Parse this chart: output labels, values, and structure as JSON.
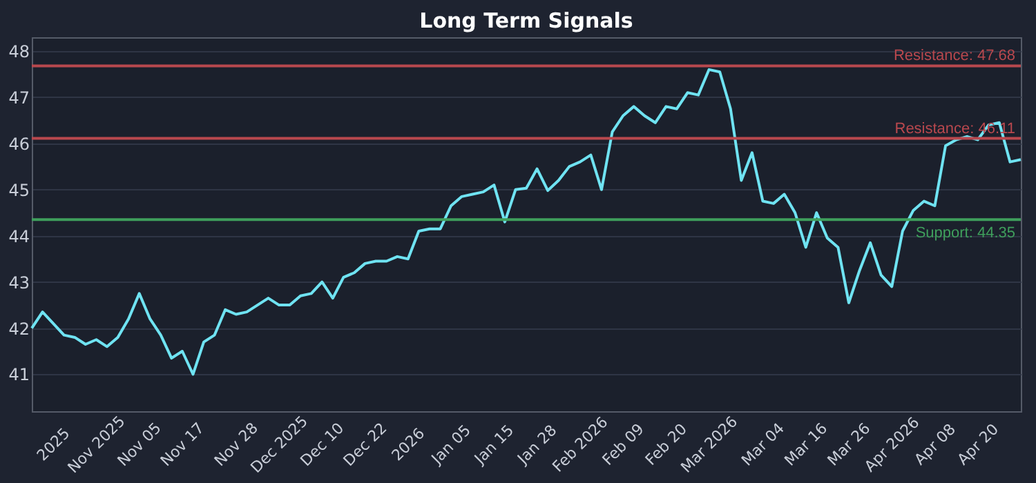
{
  "chart_data": {
    "type": "line",
    "title": "Long Term Signals",
    "categories": [
      null,
      null,
      "2025",
      null,
      null,
      null,
      "Nov 2025",
      null,
      null,
      null,
      "Nov 05",
      null,
      null,
      null,
      "Nov 17",
      null,
      null,
      null,
      null,
      "Nov 28",
      null,
      null,
      null,
      "Dec 2025",
      null,
      null,
      null,
      "Dec 10",
      null,
      null,
      null,
      "Dec 22",
      null,
      null,
      null,
      "2026",
      null,
      null,
      null,
      "Jan 05",
      null,
      null,
      null,
      "Jan 15",
      null,
      null,
      null,
      "Jan 28",
      null,
      null,
      null,
      "Feb 2026",
      null,
      null,
      null,
      "Feb 09",
      null,
      null,
      null,
      "Feb 20",
      null,
      null,
      null,
      "Mar 2026",
      null,
      null,
      null,
      null,
      "Mar 04",
      null,
      null,
      null,
      "Mar 16",
      null,
      null,
      null,
      "Mar 26",
      null,
      null,
      null,
      "Apr 2026",
      null,
      null,
      null,
      "Apr 08",
      null,
      null,
      null,
      "Apr 20",
      null,
      null,
      null,
      null
    ],
    "series": [
      {
        "color": "#6fe3f2",
        "values": [
          42.0,
          42.35,
          42.1,
          41.85,
          41.8,
          41.65,
          41.75,
          41.6,
          41.8,
          42.2,
          42.75,
          42.2,
          41.85,
          41.35,
          41.5,
          41.0,
          41.7,
          41.85,
          42.4,
          42.3,
          42.35,
          42.5,
          42.65,
          42.5,
          42.5,
          42.7,
          42.75,
          43.0,
          42.65,
          43.1,
          43.2,
          43.4,
          43.45,
          43.45,
          43.55,
          43.5,
          44.1,
          44.15,
          44.15,
          44.65,
          44.85,
          44.9,
          44.95,
          45.1,
          44.3,
          45.0,
          45.03,
          45.45,
          44.98,
          45.2,
          45.5,
          45.6,
          45.75,
          45.0,
          46.25,
          46.6,
          46.8,
          46.6,
          46.45,
          46.8,
          46.75,
          47.1,
          47.05,
          47.6,
          47.55,
          46.75,
          45.2,
          45.8,
          44.75,
          44.7,
          44.9,
          44.5,
          43.75,
          44.5,
          43.95,
          43.75,
          42.55,
          43.25,
          43.85,
          43.15,
          42.9,
          44.1,
          44.55,
          44.75,
          44.65,
          45.95,
          46.08,
          46.15,
          46.08,
          46.4,
          46.45,
          45.6,
          45.65
        ]
      }
    ],
    "ylim": [
      40.2,
      48.3
    ],
    "yticks": [
      41,
      42,
      43,
      44,
      45,
      46,
      47,
      48
    ],
    "grid": "y",
    "legend": false,
    "marker": "none",
    "line_style": "solid",
    "ref_lines": [
      {
        "axis": "y",
        "value": 47.68,
        "label": "Resistance: 47.68",
        "color": "#b9484e"
      },
      {
        "axis": "y",
        "value": 46.11,
        "label": "Resistance: 46.11",
        "color": "#b9484e"
      },
      {
        "axis": "y",
        "value": 44.35,
        "label": "Support: 44.35",
        "color": "#3f9f5c"
      }
    ]
  }
}
